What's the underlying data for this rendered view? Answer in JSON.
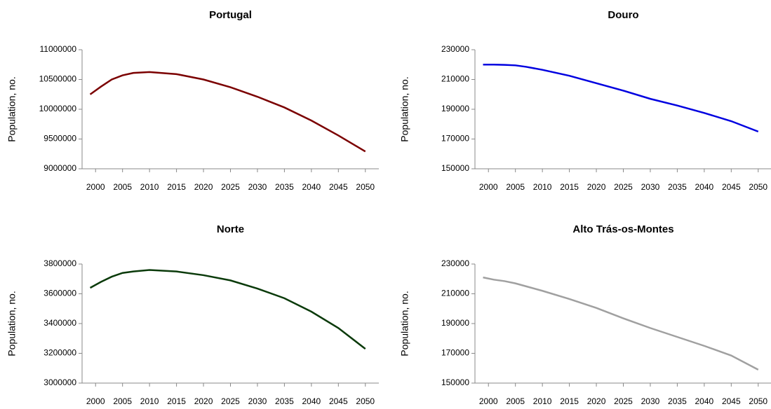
{
  "chart_data": [
    {
      "type": "line",
      "title": "Portugal",
      "ylabel": "Population, no.",
      "x": [
        1999,
        2001,
        2003,
        2005,
        2007,
        2010,
        2015,
        2020,
        2025,
        2030,
        2035,
        2040,
        2045,
        2050
      ],
      "series": [
        {
          "name": "Portugal",
          "color": "#7b0000",
          "values": [
            10250000,
            10380000,
            10500000,
            10570000,
            10610000,
            10625000,
            10590000,
            10500000,
            10370000,
            10210000,
            10030000,
            9810000,
            9560000,
            9290000
          ]
        }
      ],
      "xlim": [
        1997.5,
        2052.5
      ],
      "xticks": [
        2000,
        2005,
        2010,
        2015,
        2020,
        2025,
        2030,
        2035,
        2040,
        2045,
        2050
      ],
      "ylim": [
        9000000,
        11000000
      ],
      "yticks": [
        9000000,
        9500000,
        10000000,
        10500000,
        11000000
      ]
    },
    {
      "type": "line",
      "title": "Douro",
      "ylabel": "Population, no.",
      "x": [
        1999,
        2001,
        2003,
        2005,
        2007,
        2010,
        2015,
        2020,
        2025,
        2030,
        2035,
        2040,
        2045,
        2050
      ],
      "series": [
        {
          "name": "Douro",
          "color": "#0000e0",
          "values": [
            220000,
            220000,
            219800,
            219500,
            218500,
            216500,
            212500,
            207500,
            202500,
            197000,
            192500,
            187500,
            182000,
            175000
          ]
        }
      ],
      "xlim": [
        1997.5,
        2052.5
      ],
      "xticks": [
        2000,
        2005,
        2010,
        2015,
        2020,
        2025,
        2030,
        2035,
        2040,
        2045,
        2050
      ],
      "ylim": [
        150000,
        230000
      ],
      "yticks": [
        150000,
        170000,
        190000,
        210000,
        230000
      ]
    },
    {
      "type": "line",
      "title": "Norte",
      "ylabel": "Population, no.",
      "x": [
        1999,
        2001,
        2003,
        2005,
        2007,
        2010,
        2015,
        2020,
        2025,
        2030,
        2035,
        2040,
        2045,
        2050
      ],
      "series": [
        {
          "name": "Norte",
          "color": "#0a3a0a",
          "values": [
            3640000,
            3680000,
            3715000,
            3740000,
            3750000,
            3760000,
            3750000,
            3725000,
            3690000,
            3635000,
            3570000,
            3480000,
            3370000,
            3230000
          ]
        }
      ],
      "xlim": [
        1997.5,
        2052.5
      ],
      "xticks": [
        2000,
        2005,
        2010,
        2015,
        2020,
        2025,
        2030,
        2035,
        2040,
        2045,
        2050
      ],
      "ylim": [
        3000000,
        3800000
      ],
      "yticks": [
        3000000,
        3200000,
        3400000,
        3600000,
        3800000
      ]
    },
    {
      "type": "line",
      "title": "Alto Trás-os-Montes",
      "ylabel": "Population, no.",
      "x": [
        1999,
        2001,
        2003,
        2005,
        2007,
        2010,
        2015,
        2020,
        2025,
        2030,
        2035,
        2040,
        2045,
        2050
      ],
      "series": [
        {
          "name": "Alto Trás-os-Montes",
          "color": "#a0a0a0",
          "values": [
            221000,
            219500,
            218500,
            217000,
            215000,
            212000,
            206500,
            200500,
            193500,
            187000,
            181000,
            175000,
            168500,
            159000
          ]
        }
      ],
      "xlim": [
        1997.5,
        2052.5
      ],
      "xticks": [
        2000,
        2005,
        2010,
        2015,
        2020,
        2025,
        2030,
        2035,
        2040,
        2045,
        2050
      ],
      "ylim": [
        150000,
        230000
      ],
      "yticks": [
        150000,
        170000,
        190000,
        210000,
        230000
      ]
    }
  ]
}
